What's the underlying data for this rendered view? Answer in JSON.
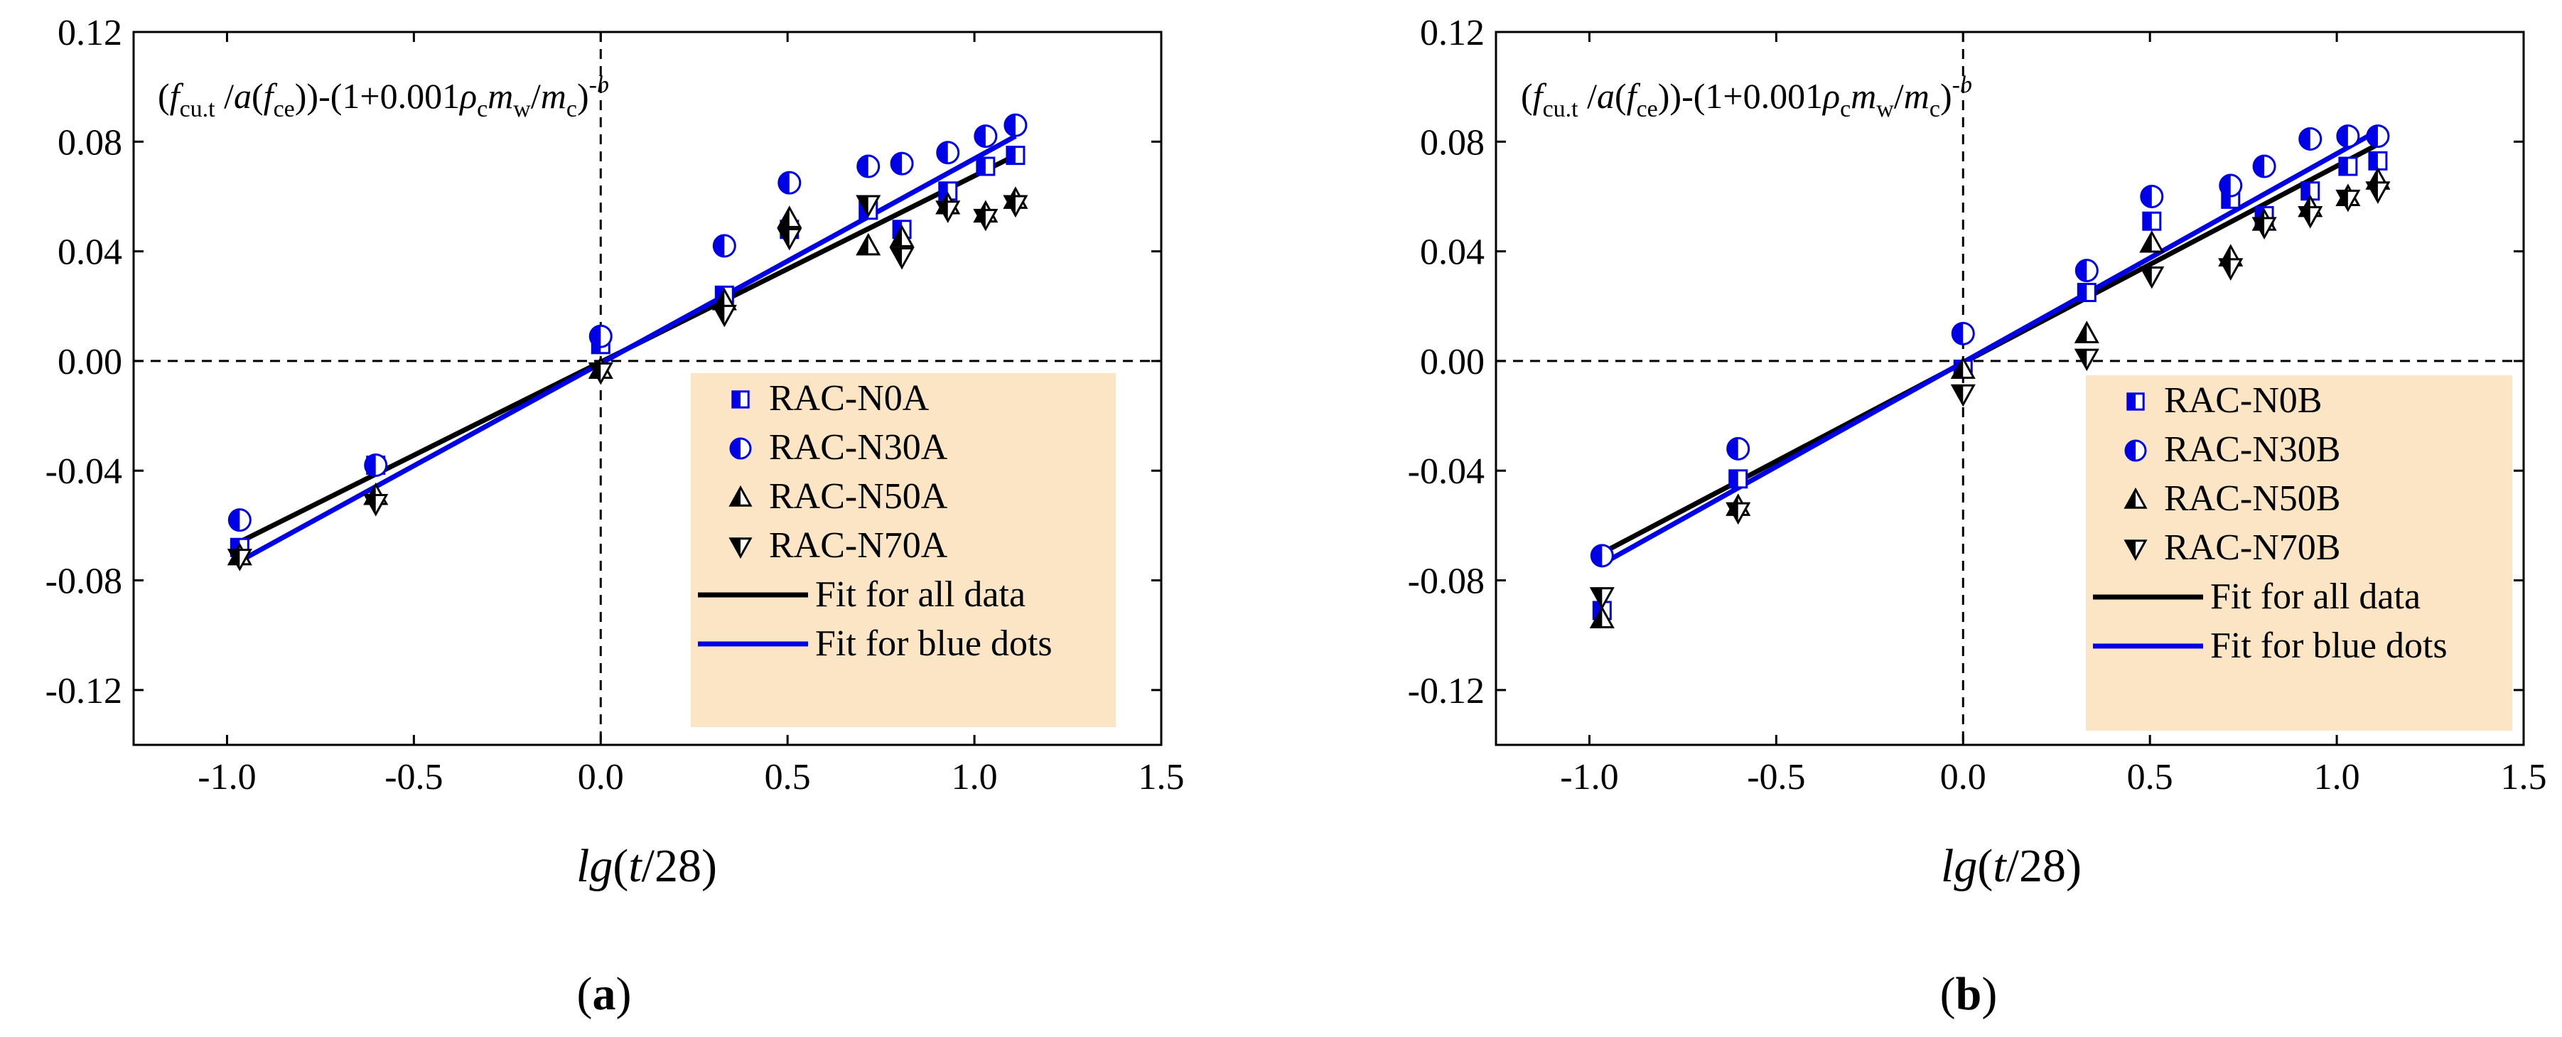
{
  "figure": {
    "panel_labels": [
      "(a)",
      "(b)"
    ],
    "formula_text": "(fcu.t/a(fce))-(1+0.001ρcmw/mc)-b",
    "x_axis_title": "lg(t/28)"
  },
  "chart_data": [
    {
      "type": "scatter",
      "panel": "(a)",
      "annotation": "(fcu.t/a(fce))-(1+0.001ρcmw/mc)-b",
      "xlabel": "lg(t/28)",
      "ylabel": "",
      "xlim": [
        -1.25,
        1.5
      ],
      "ylim": [
        -0.14,
        0.12
      ],
      "xticks": [
        -1.0,
        -0.5,
        0.0,
        0.5,
        1.0,
        1.5
      ],
      "xtick_labels": [
        "-1.0",
        "-0.5",
        "0.0",
        "0.5",
        "1.0",
        "1.5"
      ],
      "yticks": [
        -0.12,
        -0.08,
        -0.04,
        0.0,
        0.04,
        0.08,
        0.12
      ],
      "ytick_labels": [
        "-0.12",
        "-0.08",
        "-0.04",
        "0.00",
        "0.04",
        "0.08",
        "0.12"
      ],
      "grid": false,
      "legend_position": "bottom-right",
      "reference_lines": {
        "x": 0,
        "y": 0,
        "style": "dashed"
      },
      "series": [
        {
          "name": "RAC-N0A",
          "marker": "square-half",
          "color": "#0000e6",
          "x": [
            -0.966,
            -0.602,
            0.0,
            0.331,
            0.505,
            0.716,
            0.806,
            0.929,
            1.03,
            1.11
          ],
          "y": [
            -0.068,
            -0.038,
            0.006,
            0.024,
            0.048,
            0.055,
            0.048,
            0.062,
            0.071,
            0.075
          ]
        },
        {
          "name": "RAC-N30A",
          "marker": "circle-half",
          "color": "#0000e6",
          "x": [
            -0.966,
            -0.602,
            0.0,
            0.331,
            0.505,
            0.716,
            0.806,
            0.929,
            1.03,
            1.11
          ],
          "y": [
            -0.058,
            -0.038,
            0.009,
            0.042,
            0.065,
            0.071,
            0.072,
            0.076,
            0.082,
            0.086
          ]
        },
        {
          "name": "RAC-N50A",
          "marker": "triangle-up-half",
          "color": "#000000",
          "x": [
            -0.966,
            -0.602,
            0.0,
            0.331,
            0.505,
            0.716,
            0.806,
            0.929,
            1.03,
            1.11
          ],
          "y": [
            -0.071,
            -0.049,
            -0.003,
            0.022,
            0.052,
            0.042,
            0.045,
            0.057,
            0.054,
            0.059
          ]
        },
        {
          "name": "RAC-N70A",
          "marker": "triangle-down-half",
          "color": "#000000",
          "x": [
            -0.966,
            -0.602,
            0.0,
            0.331,
            0.505,
            0.716,
            0.806,
            0.929,
            1.03,
            1.11
          ],
          "y": [
            -0.072,
            -0.052,
            -0.004,
            0.017,
            0.045,
            0.057,
            0.038,
            0.055,
            0.052,
            0.057
          ]
        }
      ],
      "fit_lines": [
        {
          "name": "Fit for all data",
          "color": "#000000",
          "x": [
            -0.966,
            1.11
          ],
          "y": [
            -0.066,
            0.075
          ]
        },
        {
          "name": "Fit for blue dots",
          "color": "#0000e6",
          "x": [
            -0.966,
            1.11
          ],
          "y": [
            -0.073,
            0.082
          ]
        }
      ]
    },
    {
      "type": "scatter",
      "panel": "(b)",
      "annotation": "(fcu.t/a(fce))-(1+0.001ρcmw/mc)-b",
      "xlabel": "lg(t/28)",
      "ylabel": "",
      "xlim": [
        -1.25,
        1.5
      ],
      "ylim": [
        -0.14,
        0.12
      ],
      "xticks": [
        -1.0,
        -0.5,
        0.0,
        0.5,
        1.0,
        1.5
      ],
      "xtick_labels": [
        "-1.0",
        "-0.5",
        "0.0",
        "0.5",
        "1.0",
        "1.5"
      ],
      "yticks": [
        -0.12,
        -0.08,
        -0.04,
        0.0,
        0.04,
        0.08,
        0.12
      ],
      "ytick_labels": [
        "-0.12",
        "-0.08",
        "-0.04",
        "0.00",
        "0.04",
        "0.08",
        "0.12"
      ],
      "grid": false,
      "legend_position": "bottom-right",
      "reference_lines": {
        "x": 0,
        "y": 0,
        "style": "dashed"
      },
      "series": [
        {
          "name": "RAC-N0B",
          "marker": "square-half",
          "color": "#0000e6",
          "x": [
            -0.966,
            -0.602,
            0.0,
            0.331,
            0.505,
            0.716,
            0.806,
            0.929,
            1.03,
            1.11
          ],
          "y": [
            -0.091,
            -0.043,
            -0.003,
            0.025,
            0.051,
            0.059,
            0.053,
            0.062,
            0.071,
            0.073
          ]
        },
        {
          "name": "RAC-N30B",
          "marker": "circle-half",
          "color": "#0000e6",
          "x": [
            -0.966,
            -0.602,
            0.0,
            0.331,
            0.505,
            0.716,
            0.806,
            0.929,
            1.03,
            1.11
          ],
          "y": [
            -0.071,
            -0.032,
            0.01,
            0.033,
            0.06,
            0.064,
            0.071,
            0.081,
            0.082,
            0.082
          ]
        },
        {
          "name": "RAC-N50B",
          "marker": "triangle-up-half",
          "color": "#000000",
          "x": [
            -0.966,
            -0.602,
            0.0,
            0.331,
            0.505,
            0.716,
            0.806,
            0.929,
            1.03,
            1.11
          ],
          "y": [
            -0.094,
            -0.053,
            -0.003,
            0.01,
            0.043,
            0.038,
            0.051,
            0.056,
            0.06,
            0.066
          ]
        },
        {
          "name": "RAC-N70B",
          "marker": "triangle-down-half",
          "color": "#000000",
          "x": [
            -0.966,
            -0.602,
            0.0,
            0.331,
            0.505,
            0.716,
            0.806,
            0.929,
            1.03,
            1.11
          ],
          "y": [
            -0.086,
            -0.055,
            -0.012,
            0.001,
            0.031,
            0.034,
            0.049,
            0.053,
            0.059,
            0.062
          ]
        }
      ],
      "fit_lines": [
        {
          "name": "Fit for all data",
          "color": "#000000",
          "x": [
            -0.966,
            1.11
          ],
          "y": [
            -0.07,
            0.079
          ]
        },
        {
          "name": "Fit for blue dots",
          "color": "#0000e6",
          "x": [
            -0.966,
            1.11
          ],
          "y": [
            -0.074,
            0.084
          ]
        }
      ]
    }
  ]
}
